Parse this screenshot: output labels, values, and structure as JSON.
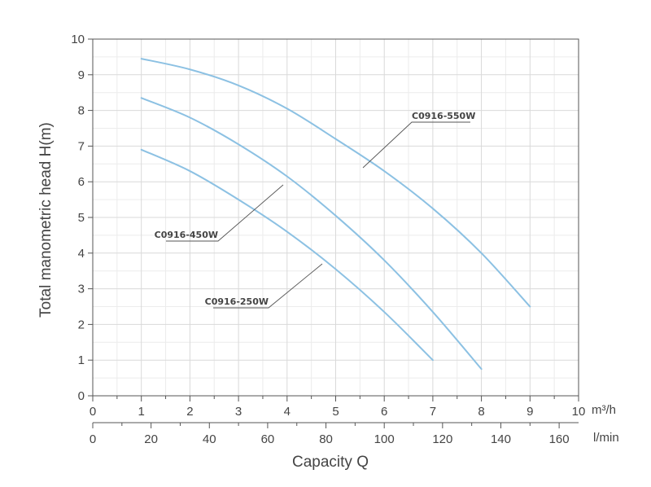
{
  "chart_data": {
    "type": "line",
    "ylabel": "Total manometric head H(m)",
    "xlabel": "Capacity Q",
    "x_unit_top": "m³/h",
    "x_unit_bottom": "l/min",
    "xlim": [
      0,
      10
    ],
    "ylim": [
      0,
      10
    ],
    "x_ticks_top": [
      "0",
      "1",
      "2",
      "3",
      "4",
      "5",
      "6",
      "7",
      "8",
      "9",
      "10"
    ],
    "x_ticks_bottom": [
      "0",
      "20",
      "40",
      "60",
      "80",
      "100",
      "120",
      "140",
      "160"
    ],
    "y_ticks": [
      "0",
      "1",
      "2",
      "3",
      "4",
      "5",
      "6",
      "7",
      "8",
      "9",
      "10"
    ],
    "grid": true,
    "line_color": "#8cc1e3",
    "series": [
      {
        "name": "C0916-550W",
        "points": [
          [
            1.0,
            9.45
          ],
          [
            2.0,
            9.15
          ],
          [
            3.0,
            8.7
          ],
          [
            4.0,
            8.05
          ],
          [
            5.0,
            7.2
          ],
          [
            6.0,
            6.3
          ],
          [
            7.0,
            5.25
          ],
          [
            8.0,
            4.0
          ],
          [
            9.0,
            2.5
          ]
        ]
      },
      {
        "name": "C0916-450W",
        "points": [
          [
            1.0,
            8.35
          ],
          [
            2.0,
            7.8
          ],
          [
            3.0,
            7.05
          ],
          [
            4.0,
            6.15
          ],
          [
            5.0,
            5.05
          ],
          [
            6.0,
            3.8
          ],
          [
            7.0,
            2.35
          ],
          [
            8.0,
            0.75
          ]
        ]
      },
      {
        "name": "C0916-250W",
        "points": [
          [
            1.0,
            6.9
          ],
          [
            2.0,
            6.3
          ],
          [
            3.0,
            5.5
          ],
          [
            4.0,
            4.6
          ],
          [
            5.0,
            3.55
          ],
          [
            6.0,
            2.35
          ],
          [
            7.0,
            1.0
          ]
        ]
      }
    ]
  }
}
